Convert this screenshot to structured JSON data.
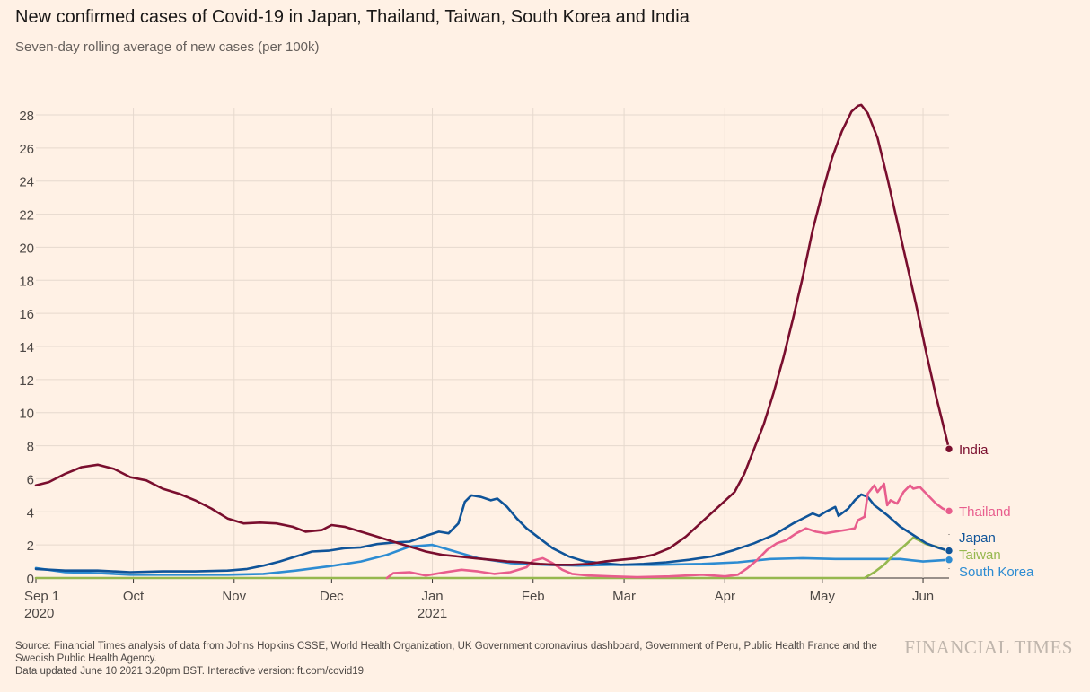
{
  "header": {
    "title": "New confirmed cases of Covid-19 in Japan, Thailand, Taiwan, South Korea and India",
    "subtitle": "Seven-day rolling average of new cases (per 100k)"
  },
  "footer": {
    "source": "Source: Financial Times analysis of data from Johns Hopkins CSSE, World Health Organization, UK Government coronavirus dashboard, Government of Peru, Public Health France and the Swedish Public Health Agency.",
    "updated": "Data updated June 10 2021 3.20pm BST. Interactive version: ft.com/covid19",
    "brand": "FINANCIAL TIMES"
  },
  "chart_data": {
    "type": "line",
    "title": "New confirmed cases of Covid-19 in Japan, Thailand, Taiwan, South Korea and India",
    "subtitle": "Seven-day rolling average of new cases (per 100k)",
    "xlabel": "",
    "ylabel": "",
    "x_range": [
      "2020-09-01",
      "2021-06-09"
    ],
    "ylim": [
      0,
      28
    ],
    "yticks": [
      0,
      2,
      4,
      6,
      8,
      10,
      12,
      14,
      16,
      18,
      20,
      22,
      24,
      26,
      28
    ],
    "xticks": [
      {
        "date": "2020-09-01",
        "label": "Sep 1",
        "sublabel": "2020"
      },
      {
        "date": "2020-10-01",
        "label": "Oct",
        "sublabel": ""
      },
      {
        "date": "2020-11-01",
        "label": "Nov",
        "sublabel": ""
      },
      {
        "date": "2020-12-01",
        "label": "Dec",
        "sublabel": ""
      },
      {
        "date": "2021-01-01",
        "label": "Jan",
        "sublabel": "2021"
      },
      {
        "date": "2021-02-01",
        "label": "Feb",
        "sublabel": ""
      },
      {
        "date": "2021-03-01",
        "label": "Mar",
        "sublabel": ""
      },
      {
        "date": "2021-04-01",
        "label": "Apr",
        "sublabel": ""
      },
      {
        "date": "2021-05-01",
        "label": "May",
        "sublabel": ""
      },
      {
        "date": "2021-06-01",
        "label": "Jun",
        "sublabel": ""
      }
    ],
    "grid": true,
    "legend": "direct labels at line ends (right)",
    "series": [
      {
        "name": "India",
        "color": "#7A0E2E",
        "points": [
          [
            "2020-09-01",
            5.6
          ],
          [
            "2020-09-05",
            5.8
          ],
          [
            "2020-09-10",
            6.3
          ],
          [
            "2020-09-15",
            6.7
          ],
          [
            "2020-09-20",
            6.85
          ],
          [
            "2020-09-25",
            6.6
          ],
          [
            "2020-09-30",
            6.1
          ],
          [
            "2020-10-05",
            5.9
          ],
          [
            "2020-10-10",
            5.4
          ],
          [
            "2020-10-15",
            5.1
          ],
          [
            "2020-10-20",
            4.7
          ],
          [
            "2020-10-25",
            4.2
          ],
          [
            "2020-10-30",
            3.6
          ],
          [
            "2020-11-04",
            3.3
          ],
          [
            "2020-11-09",
            3.35
          ],
          [
            "2020-11-14",
            3.3
          ],
          [
            "2020-11-19",
            3.1
          ],
          [
            "2020-11-23",
            2.8
          ],
          [
            "2020-11-28",
            2.9
          ],
          [
            "2020-12-01",
            3.2
          ],
          [
            "2020-12-05",
            3.1
          ],
          [
            "2020-12-10",
            2.8
          ],
          [
            "2020-12-15",
            2.5
          ],
          [
            "2020-12-20",
            2.2
          ],
          [
            "2020-12-25",
            1.9
          ],
          [
            "2020-12-30",
            1.6
          ],
          [
            "2021-01-04",
            1.4
          ],
          [
            "2021-01-09",
            1.3
          ],
          [
            "2021-01-14",
            1.2
          ],
          [
            "2021-01-19",
            1.1
          ],
          [
            "2021-01-24",
            1.0
          ],
          [
            "2021-01-29",
            0.95
          ],
          [
            "2021-02-03",
            0.85
          ],
          [
            "2021-02-08",
            0.8
          ],
          [
            "2021-02-13",
            0.8
          ],
          [
            "2021-02-18",
            0.85
          ],
          [
            "2021-02-23",
            1.0
          ],
          [
            "2021-02-28",
            1.1
          ],
          [
            "2021-03-05",
            1.2
          ],
          [
            "2021-03-10",
            1.4
          ],
          [
            "2021-03-15",
            1.8
          ],
          [
            "2021-03-20",
            2.5
          ],
          [
            "2021-03-25",
            3.4
          ],
          [
            "2021-03-30",
            4.3
          ],
          [
            "2021-04-04",
            5.2
          ],
          [
            "2021-04-07",
            6.3
          ],
          [
            "2021-04-10",
            7.8
          ],
          [
            "2021-04-13",
            9.3
          ],
          [
            "2021-04-16",
            11.2
          ],
          [
            "2021-04-19",
            13.3
          ],
          [
            "2021-04-22",
            15.7
          ],
          [
            "2021-04-25",
            18.2
          ],
          [
            "2021-04-28",
            21.0
          ],
          [
            "2021-05-01",
            23.3
          ],
          [
            "2021-05-04",
            25.4
          ],
          [
            "2021-05-07",
            27.0
          ],
          [
            "2021-05-10",
            28.2
          ],
          [
            "2021-05-12",
            28.55
          ],
          [
            "2021-05-13",
            28.6
          ],
          [
            "2021-05-15",
            28.1
          ],
          [
            "2021-05-18",
            26.6
          ],
          [
            "2021-05-21",
            24.2
          ],
          [
            "2021-05-24",
            21.6
          ],
          [
            "2021-05-27",
            19.0
          ],
          [
            "2021-05-30",
            16.4
          ],
          [
            "2021-06-02",
            13.6
          ],
          [
            "2021-06-05",
            11.0
          ],
          [
            "2021-06-07",
            9.4
          ],
          [
            "2021-06-09",
            7.8
          ]
        ],
        "end_value": 7.8
      },
      {
        "name": "Thailand",
        "color": "#E85D8D",
        "points": [
          [
            "2020-12-18",
            0.0
          ],
          [
            "2020-12-20",
            0.3
          ],
          [
            "2020-12-25",
            0.35
          ],
          [
            "2020-12-30",
            0.15
          ],
          [
            "2021-01-05",
            0.35
          ],
          [
            "2021-01-10",
            0.5
          ],
          [
            "2021-01-15",
            0.4
          ],
          [
            "2021-01-20",
            0.25
          ],
          [
            "2021-01-25",
            0.35
          ],
          [
            "2021-01-30",
            0.65
          ],
          [
            "2021-02-01",
            1.05
          ],
          [
            "2021-02-04",
            1.2
          ],
          [
            "2021-02-07",
            0.9
          ],
          [
            "2021-02-10",
            0.5
          ],
          [
            "2021-02-13",
            0.25
          ],
          [
            "2021-02-18",
            0.15
          ],
          [
            "2021-02-25",
            0.1
          ],
          [
            "2021-03-05",
            0.05
          ],
          [
            "2021-03-15",
            0.1
          ],
          [
            "2021-03-25",
            0.2
          ],
          [
            "2021-04-01",
            0.1
          ],
          [
            "2021-04-05",
            0.2
          ],
          [
            "2021-04-08",
            0.6
          ],
          [
            "2021-04-11",
            1.1
          ],
          [
            "2021-04-14",
            1.7
          ],
          [
            "2021-04-17",
            2.1
          ],
          [
            "2021-04-20",
            2.3
          ],
          [
            "2021-04-23",
            2.7
          ],
          [
            "2021-04-26",
            3.0
          ],
          [
            "2021-04-29",
            2.8
          ],
          [
            "2021-05-02",
            2.7
          ],
          [
            "2021-05-05",
            2.8
          ],
          [
            "2021-05-08",
            2.9
          ],
          [
            "2021-05-11",
            3.0
          ],
          [
            "2021-05-12",
            3.5
          ],
          [
            "2021-05-14",
            3.7
          ],
          [
            "2021-05-15",
            5.1
          ],
          [
            "2021-05-17",
            5.6
          ],
          [
            "2021-05-18",
            5.2
          ],
          [
            "2021-05-20",
            5.7
          ],
          [
            "2021-05-21",
            4.4
          ],
          [
            "2021-05-22",
            4.7
          ],
          [
            "2021-05-24",
            4.5
          ],
          [
            "2021-05-26",
            5.2
          ],
          [
            "2021-05-28",
            5.6
          ],
          [
            "2021-05-29",
            5.4
          ],
          [
            "2021-05-31",
            5.5
          ],
          [
            "2021-06-02",
            5.1
          ],
          [
            "2021-06-05",
            4.5
          ],
          [
            "2021-06-07",
            4.2
          ],
          [
            "2021-06-09",
            4.05
          ]
        ],
        "end_value": 4.05
      },
      {
        "name": "Japan",
        "color": "#0F5499",
        "points": [
          [
            "2020-09-01",
            0.55
          ],
          [
            "2020-09-10",
            0.45
          ],
          [
            "2020-09-20",
            0.45
          ],
          [
            "2020-09-30",
            0.35
          ],
          [
            "2020-10-10",
            0.4
          ],
          [
            "2020-10-20",
            0.4
          ],
          [
            "2020-10-30",
            0.45
          ],
          [
            "2020-11-05",
            0.55
          ],
          [
            "2020-11-10",
            0.75
          ],
          [
            "2020-11-15",
            1.0
          ],
          [
            "2020-11-20",
            1.3
          ],
          [
            "2020-11-25",
            1.6
          ],
          [
            "2020-11-30",
            1.65
          ],
          [
            "2020-12-05",
            1.8
          ],
          [
            "2020-12-10",
            1.85
          ],
          [
            "2020-12-15",
            2.05
          ],
          [
            "2020-12-20",
            2.15
          ],
          [
            "2020-12-25",
            2.2
          ],
          [
            "2020-12-30",
            2.55
          ],
          [
            "2021-01-03",
            2.8
          ],
          [
            "2021-01-06",
            2.7
          ],
          [
            "2021-01-09",
            3.3
          ],
          [
            "2021-01-11",
            4.6
          ],
          [
            "2021-01-13",
            5.0
          ],
          [
            "2021-01-16",
            4.9
          ],
          [
            "2021-01-19",
            4.7
          ],
          [
            "2021-01-21",
            4.8
          ],
          [
            "2021-01-24",
            4.3
          ],
          [
            "2021-01-27",
            3.6
          ],
          [
            "2021-01-30",
            3.0
          ],
          [
            "2021-02-03",
            2.4
          ],
          [
            "2021-02-07",
            1.8
          ],
          [
            "2021-02-12",
            1.3
          ],
          [
            "2021-02-17",
            1.0
          ],
          [
            "2021-02-22",
            0.9
          ],
          [
            "2021-02-28",
            0.8
          ],
          [
            "2021-03-07",
            0.85
          ],
          [
            "2021-03-14",
            0.95
          ],
          [
            "2021-03-21",
            1.1
          ],
          [
            "2021-03-28",
            1.3
          ],
          [
            "2021-04-04",
            1.7
          ],
          [
            "2021-04-10",
            2.1
          ],
          [
            "2021-04-16",
            2.6
          ],
          [
            "2021-04-22",
            3.3
          ],
          [
            "2021-04-28",
            3.9
          ],
          [
            "2021-04-30",
            3.75
          ],
          [
            "2021-05-02",
            4.0
          ],
          [
            "2021-05-05",
            4.3
          ],
          [
            "2021-05-06",
            3.75
          ],
          [
            "2021-05-09",
            4.2
          ],
          [
            "2021-05-11",
            4.7
          ],
          [
            "2021-05-13",
            5.05
          ],
          [
            "2021-05-15",
            4.9
          ],
          [
            "2021-05-17",
            4.4
          ],
          [
            "2021-05-21",
            3.8
          ],
          [
            "2021-05-25",
            3.1
          ],
          [
            "2021-05-29",
            2.6
          ],
          [
            "2021-06-02",
            2.1
          ],
          [
            "2021-06-06",
            1.8
          ],
          [
            "2021-06-09",
            1.65
          ]
        ],
        "end_value": 1.65
      },
      {
        "name": "Taiwan",
        "color": "#96B84F",
        "points": [
          [
            "2020-09-01",
            0.0
          ],
          [
            "2021-05-14",
            0.0
          ],
          [
            "2021-05-17",
            0.35
          ],
          [
            "2021-05-20",
            0.8
          ],
          [
            "2021-05-23",
            1.4
          ],
          [
            "2021-05-26",
            1.9
          ],
          [
            "2021-05-29",
            2.45
          ],
          [
            "2021-05-31",
            2.25
          ],
          [
            "2021-06-02",
            2.05
          ],
          [
            "2021-06-05",
            1.9
          ],
          [
            "2021-06-09",
            1.6
          ]
        ],
        "end_value": 1.6
      },
      {
        "name": "South Korea",
        "color": "#2D8CD2",
        "points": [
          [
            "2020-09-01",
            0.6
          ],
          [
            "2020-09-10",
            0.35
          ],
          [
            "2020-09-20",
            0.3
          ],
          [
            "2020-09-30",
            0.2
          ],
          [
            "2020-10-10",
            0.2
          ],
          [
            "2020-10-20",
            0.2
          ],
          [
            "2020-10-30",
            0.2
          ],
          [
            "2020-11-10",
            0.25
          ],
          [
            "2020-11-20",
            0.45
          ],
          [
            "2020-11-30",
            0.7
          ],
          [
            "2020-12-10",
            1.0
          ],
          [
            "2020-12-18",
            1.4
          ],
          [
            "2020-12-25",
            1.9
          ],
          [
            "2021-01-01",
            2.0
          ],
          [
            "2021-01-08",
            1.6
          ],
          [
            "2021-01-15",
            1.2
          ],
          [
            "2021-01-25",
            0.9
          ],
          [
            "2021-02-05",
            0.8
          ],
          [
            "2021-02-15",
            0.75
          ],
          [
            "2021-02-25",
            0.8
          ],
          [
            "2021-03-10",
            0.8
          ],
          [
            "2021-03-25",
            0.85
          ],
          [
            "2021-04-05",
            0.95
          ],
          [
            "2021-04-15",
            1.15
          ],
          [
            "2021-04-25",
            1.2
          ],
          [
            "2021-05-05",
            1.15
          ],
          [
            "2021-05-15",
            1.15
          ],
          [
            "2021-05-25",
            1.15
          ],
          [
            "2021-06-01",
            1.0
          ],
          [
            "2021-06-09",
            1.1
          ]
        ],
        "end_value": 1.1
      }
    ]
  }
}
